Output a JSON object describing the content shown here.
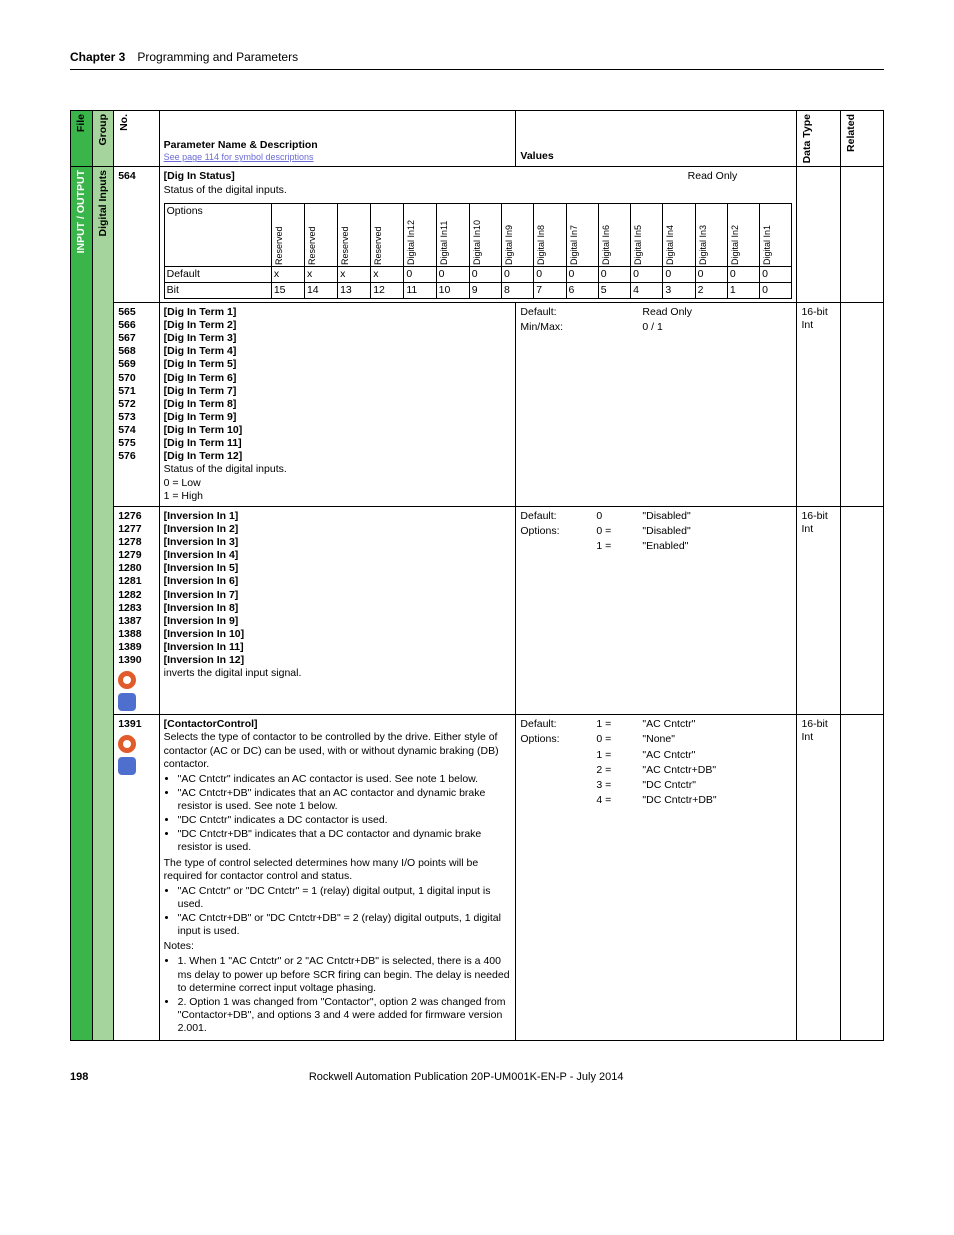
{
  "header": {
    "chapter": "Chapter 3",
    "title": "Programming and Parameters"
  },
  "columns": {
    "file": "File",
    "group": "Group",
    "no": "No.",
    "param": "Parameter Name & Description",
    "param_sub": "See page 114 for symbol descriptions",
    "values": "Values",
    "dtype": "Data Type",
    "related": "Related"
  },
  "band": {
    "file": "INPUT / OUTPUT",
    "group": "Digital Inputs"
  },
  "row564": {
    "no": "564",
    "name": "[Dig In Status]",
    "desc": "Status of the digital inputs.",
    "readonly": "Read Only",
    "bits": {
      "optLabel": "Options",
      "defLabel": "Default",
      "bitLabel": "Bit",
      "cols": [
        "Reserved",
        "Reserved",
        "Reserved",
        "Reserved",
        "Digital In12",
        "Digital In11",
        "Digital In10",
        "Digital In9",
        "Digital In8",
        "Digital In7",
        "Digital In6",
        "Digital In5",
        "Digital In4",
        "Digital In3",
        "Digital In2",
        "Digital In1"
      ],
      "defaults": [
        "x",
        "x",
        "x",
        "x",
        "0",
        "0",
        "0",
        "0",
        "0",
        "0",
        "0",
        "0",
        "0",
        "0",
        "0",
        "0"
      ],
      "bitnums": [
        "15",
        "14",
        "13",
        "12",
        "11",
        "10",
        "9",
        "8",
        "7",
        "6",
        "5",
        "4",
        "3",
        "2",
        "1",
        "0"
      ]
    }
  },
  "row565": {
    "nos": [
      "565",
      "566",
      "567",
      "568",
      "569",
      "570",
      "571",
      "572",
      "573",
      "574",
      "575",
      "576"
    ],
    "names": [
      "[Dig In Term 1]",
      "[Dig In Term 2]",
      "[Dig In Term 3]",
      "[Dig In Term 4]",
      "[Dig In Term 5]",
      "[Dig In Term 6]",
      "[Dig In Term 7]",
      "[Dig In Term 8]",
      "[Dig In Term 9]",
      "[Dig In Term 10]",
      "[Dig In Term 11]",
      "[Dig In Term 12]"
    ],
    "desc": "Status of the digital inputs.",
    "extra1": "0 = Low",
    "extra2": "1 = High",
    "vDefault": "Default:",
    "vMinMax": "Min/Max:",
    "readonly": "Read Only",
    "range": "0 / 1",
    "dtype1": "16-bit",
    "dtype2": "Int"
  },
  "row1276": {
    "nos": [
      "1276",
      "1277",
      "1278",
      "1279",
      "1280",
      "1281",
      "1282",
      "1283",
      "1387",
      "1388",
      "1389",
      "1390"
    ],
    "names": [
      "[Inversion In 1]",
      "[Inversion In 2]",
      "[Inversion In 3]",
      "[Inversion In 4]",
      "[Inversion In 5]",
      "[Inversion In 6]",
      "[Inversion In 7]",
      "[Inversion In 8]",
      "[Inversion In 9]",
      "[Inversion In 10]",
      "[Inversion In 11]",
      "[Inversion In 12]"
    ],
    "desc": "inverts the digital input signal.",
    "vDefault": "Default:",
    "vOptions": "Options:",
    "defVal": "0",
    "defText": "\"Disabled\"",
    "opt0k": "0 =",
    "opt0v": "\"Disabled\"",
    "opt1k": "1 =",
    "opt1v": "\"Enabled\"",
    "dtype1": "16-bit",
    "dtype2": "Int"
  },
  "row1391": {
    "no": "1391",
    "name": "[ContactorControl]",
    "intro": "Selects the type of contactor to be controlled by the drive. Either style of contactor (AC or DC) can be used, with or without dynamic braking (DB) contactor.",
    "b1": "\"AC Cntctr\" indicates an AC contactor is used. See note 1 below.",
    "b2": "\"AC Cntctr+DB\" indicates that an AC contactor and dynamic brake resistor is used. See note 1 below.",
    "b3": "\"DC Cntctr\" indicates a DC contactor is used.",
    "b4": "\"DC Cntctr+DB\" indicates that a DC contactor and dynamic brake resistor is used.",
    "mid": "The type of control selected determines how many I/O points will be required for contactor control and status.",
    "b5": "\"AC Cntctr\" or \"DC Cntctr\" = 1 (relay) digital output, 1 digital input is used.",
    "b6": "\"AC Cntctr+DB\" or \"DC Cntctr+DB\" = 2 (relay) digital outputs, 1 digital input is used.",
    "notes": "Notes:",
    "n1": "1. When 1 \"AC Cntctr\" or 2 \"AC Cntctr+DB\" is selected, there is a 400 ms delay to power up before SCR firing can begin. The delay is needed to determine correct input voltage phasing.",
    "n2": "2. Option 1 was changed from \"Contactor\", option 2 was changed from \"Contactor+DB\", and options 3 and 4 were added for firmware version 2.001.",
    "vDefault": "Default:",
    "vOptions": "Options:",
    "defK": "1 =",
    "defV": "\"AC Cntctr\"",
    "o0k": "0 =",
    "o0v": "\"None\"",
    "o1k": "1 =",
    "o1v": "\"AC Cntctr\"",
    "o2k": "2 =",
    "o2v": "\"AC Cntctr+DB\"",
    "o3k": "3 =",
    "o3v": "\"DC Cntctr\"",
    "o4k": "4 =",
    "o4v": "\"DC Cntctr+DB\"",
    "dtype1": "16-bit",
    "dtype2": "Int"
  },
  "footer": {
    "page": "198",
    "pub": "Rockwell Automation Publication 20P-UM001K-EN-P - July 2014"
  }
}
